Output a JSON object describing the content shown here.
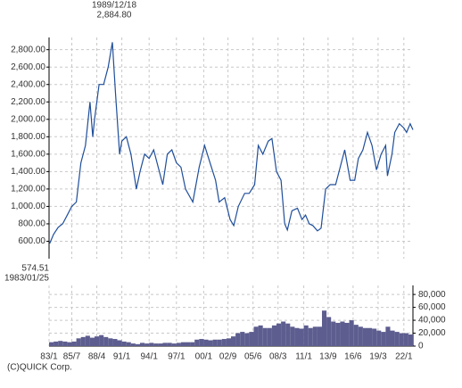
{
  "chart_data": [
    {
      "type": "line",
      "color": "#1f4e9a",
      "grid": true,
      "xlim": [
        1983,
        2023
      ],
      "ylim": [
        400,
        2940
      ],
      "yticks": [
        {
          "value": 600,
          "label": "600.00"
        },
        {
          "value": 800,
          "label": "800.00"
        },
        {
          "value": 1000,
          "label": "1,000.00"
        },
        {
          "value": 1200,
          "label": "1,200.00"
        },
        {
          "value": 1400,
          "label": "1,400.00"
        },
        {
          "value": 1600,
          "label": "1,600.00"
        },
        {
          "value": 1800,
          "label": "1,800.00"
        },
        {
          "value": 2000,
          "label": "2,000.00"
        },
        {
          "value": 2200,
          "label": "2,200.00"
        },
        {
          "value": 2400,
          "label": "2,400.00"
        },
        {
          "value": 2600,
          "label": "2,600.00"
        },
        {
          "value": 2800,
          "label": "2,800.00"
        }
      ],
      "x": [
        1983.07,
        1983.5,
        1984.0,
        1984.5,
        1985.0,
        1985.5,
        1986.0,
        1986.5,
        1987.0,
        1987.5,
        1987.8,
        1988.0,
        1988.5,
        1989.0,
        1989.5,
        1989.96,
        1990.3,
        1990.75,
        1991.0,
        1991.5,
        1992.0,
        1992.6,
        1993.0,
        1993.5,
        1994.0,
        1994.5,
        1995.0,
        1995.5,
        1996.0,
        1996.5,
        1997.0,
        1997.5,
        1998.0,
        1998.8,
        1999.5,
        2000.1,
        2000.7,
        2001.3,
        2001.7,
        2002.3,
        2002.9,
        2003.3,
        2003.8,
        2004.5,
        2005.0,
        2005.6,
        2006.0,
        2006.5,
        2007.1,
        2007.5,
        2008.0,
        2008.5,
        2008.9,
        2009.2,
        2009.7,
        2010.3,
        2010.8,
        2011.2,
        2011.6,
        2012.0,
        2012.5,
        2012.9,
        2013.4,
        2013.9,
        2014.5,
        2015.0,
        2015.5,
        2016.1,
        2016.6,
        2017.0,
        2017.5,
        2018.0,
        2018.5,
        2018.99,
        2019.5,
        2020.0,
        2020.2,
        2020.7,
        2021.0,
        2021.5,
        2022.0,
        2022.3,
        2022.7,
        2023.0
      ],
      "values": [
        574.51,
        680,
        760,
        800,
        900,
        1000,
        1050,
        1500,
        1700,
        2200,
        1800,
        2000,
        2400,
        2400,
        2600,
        2884.8,
        2300,
        1600,
        1750,
        1800,
        1600,
        1200,
        1400,
        1600,
        1550,
        1650,
        1450,
        1250,
        1600,
        1650,
        1500,
        1450,
        1200,
        1050,
        1450,
        1700,
        1500,
        1300,
        1050,
        1100,
        850,
        780,
        1000,
        1150,
        1150,
        1250,
        1700,
        1600,
        1750,
        1780,
        1400,
        1300,
        800,
        730,
        950,
        980,
        850,
        900,
        800,
        780,
        720,
        750,
        1200,
        1250,
        1250,
        1450,
        1650,
        1300,
        1300,
        1550,
        1650,
        1850,
        1700,
        1420,
        1600,
        1700,
        1350,
        1600,
        1850,
        1950,
        1900,
        1850,
        1950,
        1880
      ],
      "annotations": [
        [
          "1989/12/18",
          "2,884.80"
        ],
        [
          "574.51",
          "1983/01/25"
        ]
      ]
    },
    {
      "type": "bar",
      "color": "#5d5d8f",
      "grid": true,
      "xlim": [
        1983,
        2023
      ],
      "ylim": [
        0,
        94000
      ],
      "yticks": [
        0,
        {
          "value": 20000,
          "label": "20,000"
        },
        {
          "value": 40000,
          "label": "40,000"
        },
        {
          "value": 60000,
          "label": "60,000"
        },
        {
          "value": 80000,
          "label": "80,000"
        }
      ],
      "xticks": [
        {
          "value": 1983.0,
          "label": "83/1"
        },
        {
          "value": 1985.5,
          "label": "85/7"
        },
        {
          "value": 1988.25,
          "label": "88/4"
        },
        {
          "value": 1991.0,
          "label": "91/1"
        },
        {
          "value": 1994.0,
          "label": "94/1"
        },
        {
          "value": 1997.0,
          "label": "97/1"
        },
        {
          "value": 2000.0,
          "label": "00/1"
        },
        {
          "value": 2002.67,
          "label": "02/9"
        },
        {
          "value": 2005.42,
          "label": "05/6"
        },
        {
          "value": 2008.17,
          "label": "08/3"
        },
        {
          "value": 2011.0,
          "label": "11/1"
        },
        {
          "value": 2013.67,
          "label": "13/9"
        },
        {
          "value": 2016.42,
          "label": "16/6"
        },
        {
          "value": 2019.17,
          "label": "19/3"
        },
        {
          "value": 2022.0,
          "label": "22/1"
        }
      ],
      "x": [
        1983.25,
        1983.75,
        1984.25,
        1984.75,
        1985.25,
        1985.75,
        1986.25,
        1986.75,
        1987.25,
        1987.75,
        1988.25,
        1988.75,
        1989.25,
        1989.75,
        1990.25,
        1990.75,
        1991.25,
        1991.75,
        1992.25,
        1992.75,
        1993.25,
        1993.75,
        1994.25,
        1994.75,
        1995.25,
        1995.75,
        1996.25,
        1996.75,
        1997.25,
        1997.75,
        1998.25,
        1998.75,
        1999.25,
        1999.75,
        2000.25,
        2000.75,
        2001.25,
        2001.75,
        2002.25,
        2002.75,
        2003.25,
        2003.75,
        2004.25,
        2004.75,
        2005.25,
        2005.75,
        2006.25,
        2006.75,
        2007.25,
        2007.75,
        2008.25,
        2008.75,
        2009.25,
        2009.75,
        2010.25,
        2010.75,
        2011.25,
        2011.75,
        2012.25,
        2012.75,
        2013.25,
        2013.75,
        2014.25,
        2014.75,
        2015.25,
        2015.75,
        2016.25,
        2016.75,
        2017.25,
        2017.75,
        2018.25,
        2018.75,
        2019.25,
        2019.75,
        2020.25,
        2020.75,
        2021.25,
        2021.75,
        2022.25,
        2022.75
      ],
      "values": [
        6000,
        7000,
        8000,
        7000,
        6000,
        7000,
        12000,
        14000,
        16000,
        13000,
        15000,
        17000,
        14000,
        12000,
        11000,
        9000,
        7000,
        6000,
        4000,
        3000,
        5000,
        4000,
        5000,
        4000,
        4000,
        5000,
        5000,
        4000,
        5000,
        6000,
        6000,
        6000,
        10000,
        11000,
        10000,
        9000,
        10000,
        10000,
        11000,
        12000,
        15000,
        20000,
        22000,
        20000,
        22000,
        30000,
        32000,
        28000,
        28000,
        32000,
        35000,
        38000,
        35000,
        30000,
        28000,
        27000,
        32000,
        28000,
        30000,
        30000,
        55000,
        45000,
        38000,
        36000,
        38000,
        36000,
        40000,
        33000,
        30000,
        28000,
        28000,
        27000,
        24000,
        22000,
        30000,
        24000,
        22000,
        20000,
        20000,
        18000
      ]
    }
  ],
  "credit": "(C)QUICK Corp."
}
